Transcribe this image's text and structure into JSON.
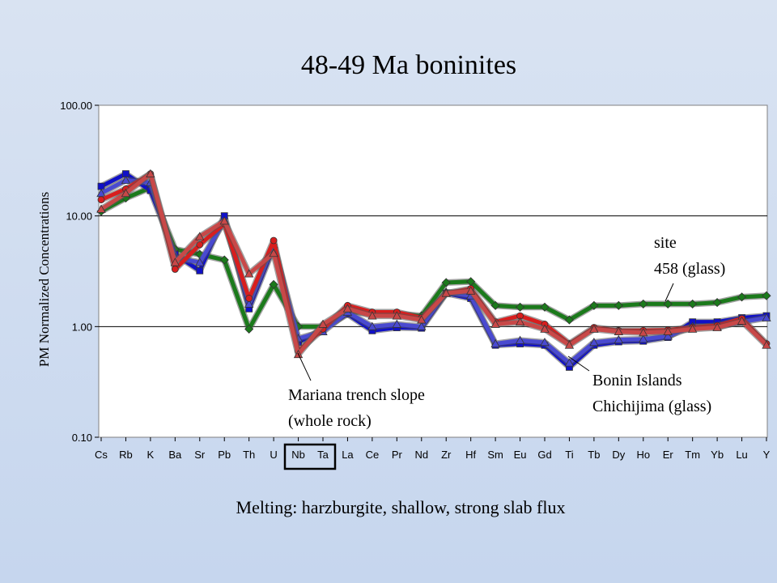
{
  "chart_data": {
    "type": "line",
    "title": "48-49 Ma boninites",
    "subtitle": "Melting: harzburgite, shallow, strong slab flux",
    "ylabel": "PM Normalized Concentrations",
    "xlabel": "",
    "yscale": "log",
    "ylim": [
      0.1,
      100
    ],
    "yticks": [
      "100.00",
      "10.00",
      "1.00",
      "0.10"
    ],
    "grid": "horizontal major",
    "categories": [
      "Cs",
      "Rb",
      "K",
      "Ba",
      "Sr",
      "Pb",
      "Th",
      "U",
      "Nb",
      "Ta",
      "La",
      "Ce",
      "Pr",
      "Nd",
      "Zr",
      "Hf",
      "Sm",
      "Eu",
      "Gd",
      "Ti",
      "Tb",
      "Dy",
      "Ho",
      "Er",
      "Tm",
      "Yb",
      "Lu",
      "Y"
    ],
    "highlighted_categories": [
      "Nb",
      "Ta"
    ],
    "series": [
      {
        "name": "",
        "color": "#1b7a1b",
        "marker": "diamond",
        "values": [
          11,
          14.5,
          18,
          5,
          4.5,
          4.0,
          0.95,
          2.4,
          1.0,
          1.0,
          1.4,
          1.3,
          1.3,
          1.25,
          2.5,
          2.55,
          1.55,
          1.5,
          1.5,
          1.15,
          1.55,
          1.55,
          1.6,
          1.6,
          1.6,
          1.65,
          1.85,
          1.9
        ]
      },
      {
        "name": "",
        "color": "#1010c8",
        "marker": "square",
        "values": [
          18.5,
          24,
          17,
          4.5,
          3.2,
          10,
          1.45,
          5.2,
          0.72,
          0.95,
          1.3,
          0.92,
          0.98,
          0.97,
          2.0,
          1.8,
          0.68,
          0.7,
          0.68,
          0.43,
          0.68,
          0.73,
          0.74,
          0.8,
          1.1,
          1.1,
          1.2,
          1.25
        ]
      },
      {
        "name": "",
        "color": "#4a4ad0",
        "marker": "triangle",
        "values": [
          16,
          21,
          20,
          4.2,
          3.8,
          9,
          1.6,
          5.5,
          0.78,
          0.9,
          1.35,
          1.0,
          1.05,
          1.0,
          2.05,
          1.9,
          0.7,
          0.75,
          0.72,
          0.47,
          0.72,
          0.76,
          0.77,
          0.82,
          1.0,
          1.0,
          1.1,
          1.2
        ]
      },
      {
        "name": "",
        "color": "#d81e1e",
        "marker": "circle",
        "values": [
          14,
          17.5,
          24,
          3.3,
          5.5,
          8.5,
          1.8,
          6.0,
          0.6,
          0.95,
          1.55,
          1.35,
          1.35,
          1.2,
          2.0,
          2.2,
          1.1,
          1.25,
          1.05,
          0.7,
          0.98,
          0.92,
          0.92,
          0.93,
          0.98,
          1.02,
          1.18,
          0.7
        ]
      },
      {
        "name": "",
        "color": "#c84848",
        "marker": "triangle",
        "values": [
          11.5,
          16,
          24,
          3.8,
          6.5,
          9,
          3.0,
          4.6,
          0.56,
          1.05,
          1.45,
          1.25,
          1.25,
          1.15,
          2.0,
          2.1,
          1.05,
          1.1,
          0.95,
          0.68,
          0.95,
          0.9,
          0.88,
          0.9,
          0.95,
          0.98,
          1.12,
          0.68
        ]
      }
    ],
    "annotations": [
      {
        "lines": [
          "site",
          "458 (glass)"
        ]
      },
      {
        "lines": [
          "Bonin Islands",
          "Chichijima (glass)"
        ]
      },
      {
        "lines": [
          "Mariana trench slope",
          "(whole rock)"
        ]
      }
    ]
  }
}
